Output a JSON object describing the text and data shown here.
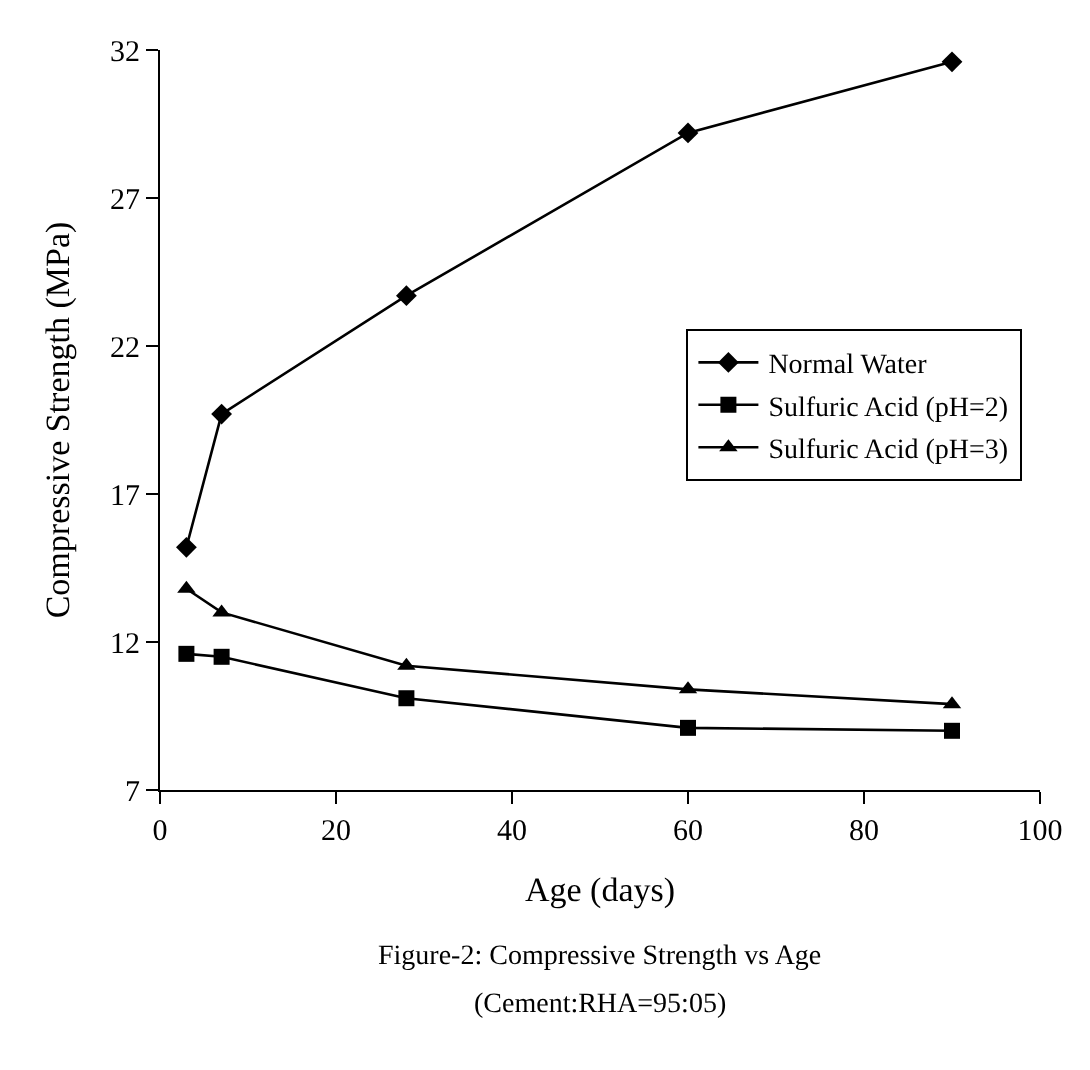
{
  "chart_data": {
    "type": "line",
    "xlabel": "Age (days)",
    "ylabel": "Compressive Strength (MPa)",
    "x": [
      3,
      7,
      28,
      60,
      90
    ],
    "series": [
      {
        "name": "Normal Water",
        "color": "#000000",
        "marker": "diamond",
        "values": [
          15.2,
          19.7,
          23.7,
          29.2,
          31.6
        ]
      },
      {
        "name": "Sulfuric Acid (pH=2)",
        "color": "#000000",
        "marker": "square",
        "values": [
          11.6,
          11.5,
          10.1,
          9.1,
          9.0
        ]
      },
      {
        "name": "Sulfuric Acid (pH=3)",
        "color": "#000000",
        "marker": "triangle",
        "values": [
          13.8,
          13.0,
          11.2,
          10.4,
          9.9
        ]
      }
    ],
    "xlim": [
      0,
      100
    ],
    "xticks": [
      0,
      20,
      40,
      60,
      80,
      100
    ],
    "ylim": [
      7,
      32
    ],
    "yticks": [
      7,
      12,
      17,
      22,
      27,
      32
    ],
    "grid": false,
    "legend": "right",
    "line_style": "solid",
    "annotations": [
      "Figure-2: Compressive Strength vs Age",
      "(Cement:RHA=95:05)"
    ]
  }
}
